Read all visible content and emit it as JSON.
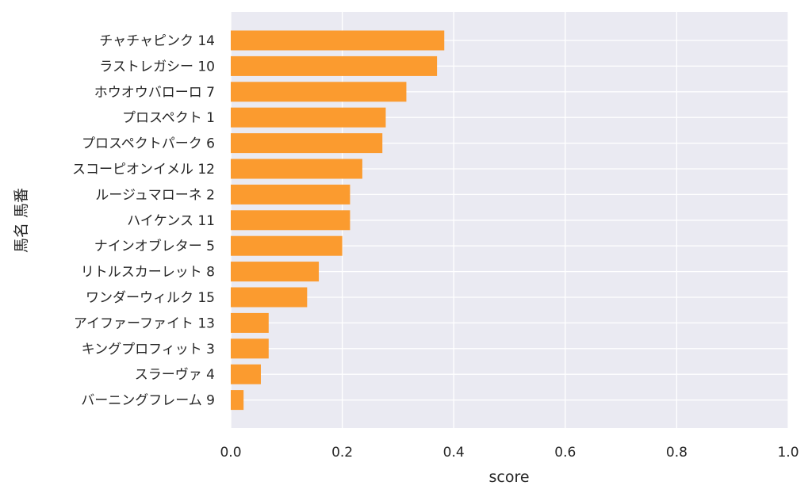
{
  "chart_data": {
    "type": "bar",
    "orientation": "horizontal",
    "xlabel": "score",
    "ylabel": "馬名 馬番",
    "xlim": [
      0.0,
      1.0
    ],
    "xticks": [
      "0.0",
      "0.2",
      "0.4",
      "0.6",
      "0.8",
      "1.0"
    ],
    "grid": true,
    "bar_color": "#fb9b2f",
    "background_color": "#eaeaf2",
    "categories": [
      "チャチャピンク 14",
      "ラストレガシー 10",
      "ホウオウバローロ 7",
      "プロスペクト 1",
      "プロスペクトパーク 6",
      "スコーピオンイメル 12",
      "ルージュマローネ 2",
      "ハイケンス 11",
      "ナインオブレター 5",
      "リトルスカーレット 8",
      "ワンダーウィルク 15",
      "アイファーファイト 13",
      "キングプロフィット 3",
      "スラーヴァ 4",
      "バーニングフレーム 9"
    ],
    "values": [
      0.383,
      0.37,
      0.315,
      0.278,
      0.272,
      0.236,
      0.214,
      0.214,
      0.2,
      0.158,
      0.137,
      0.068,
      0.068,
      0.054,
      0.023
    ]
  }
}
